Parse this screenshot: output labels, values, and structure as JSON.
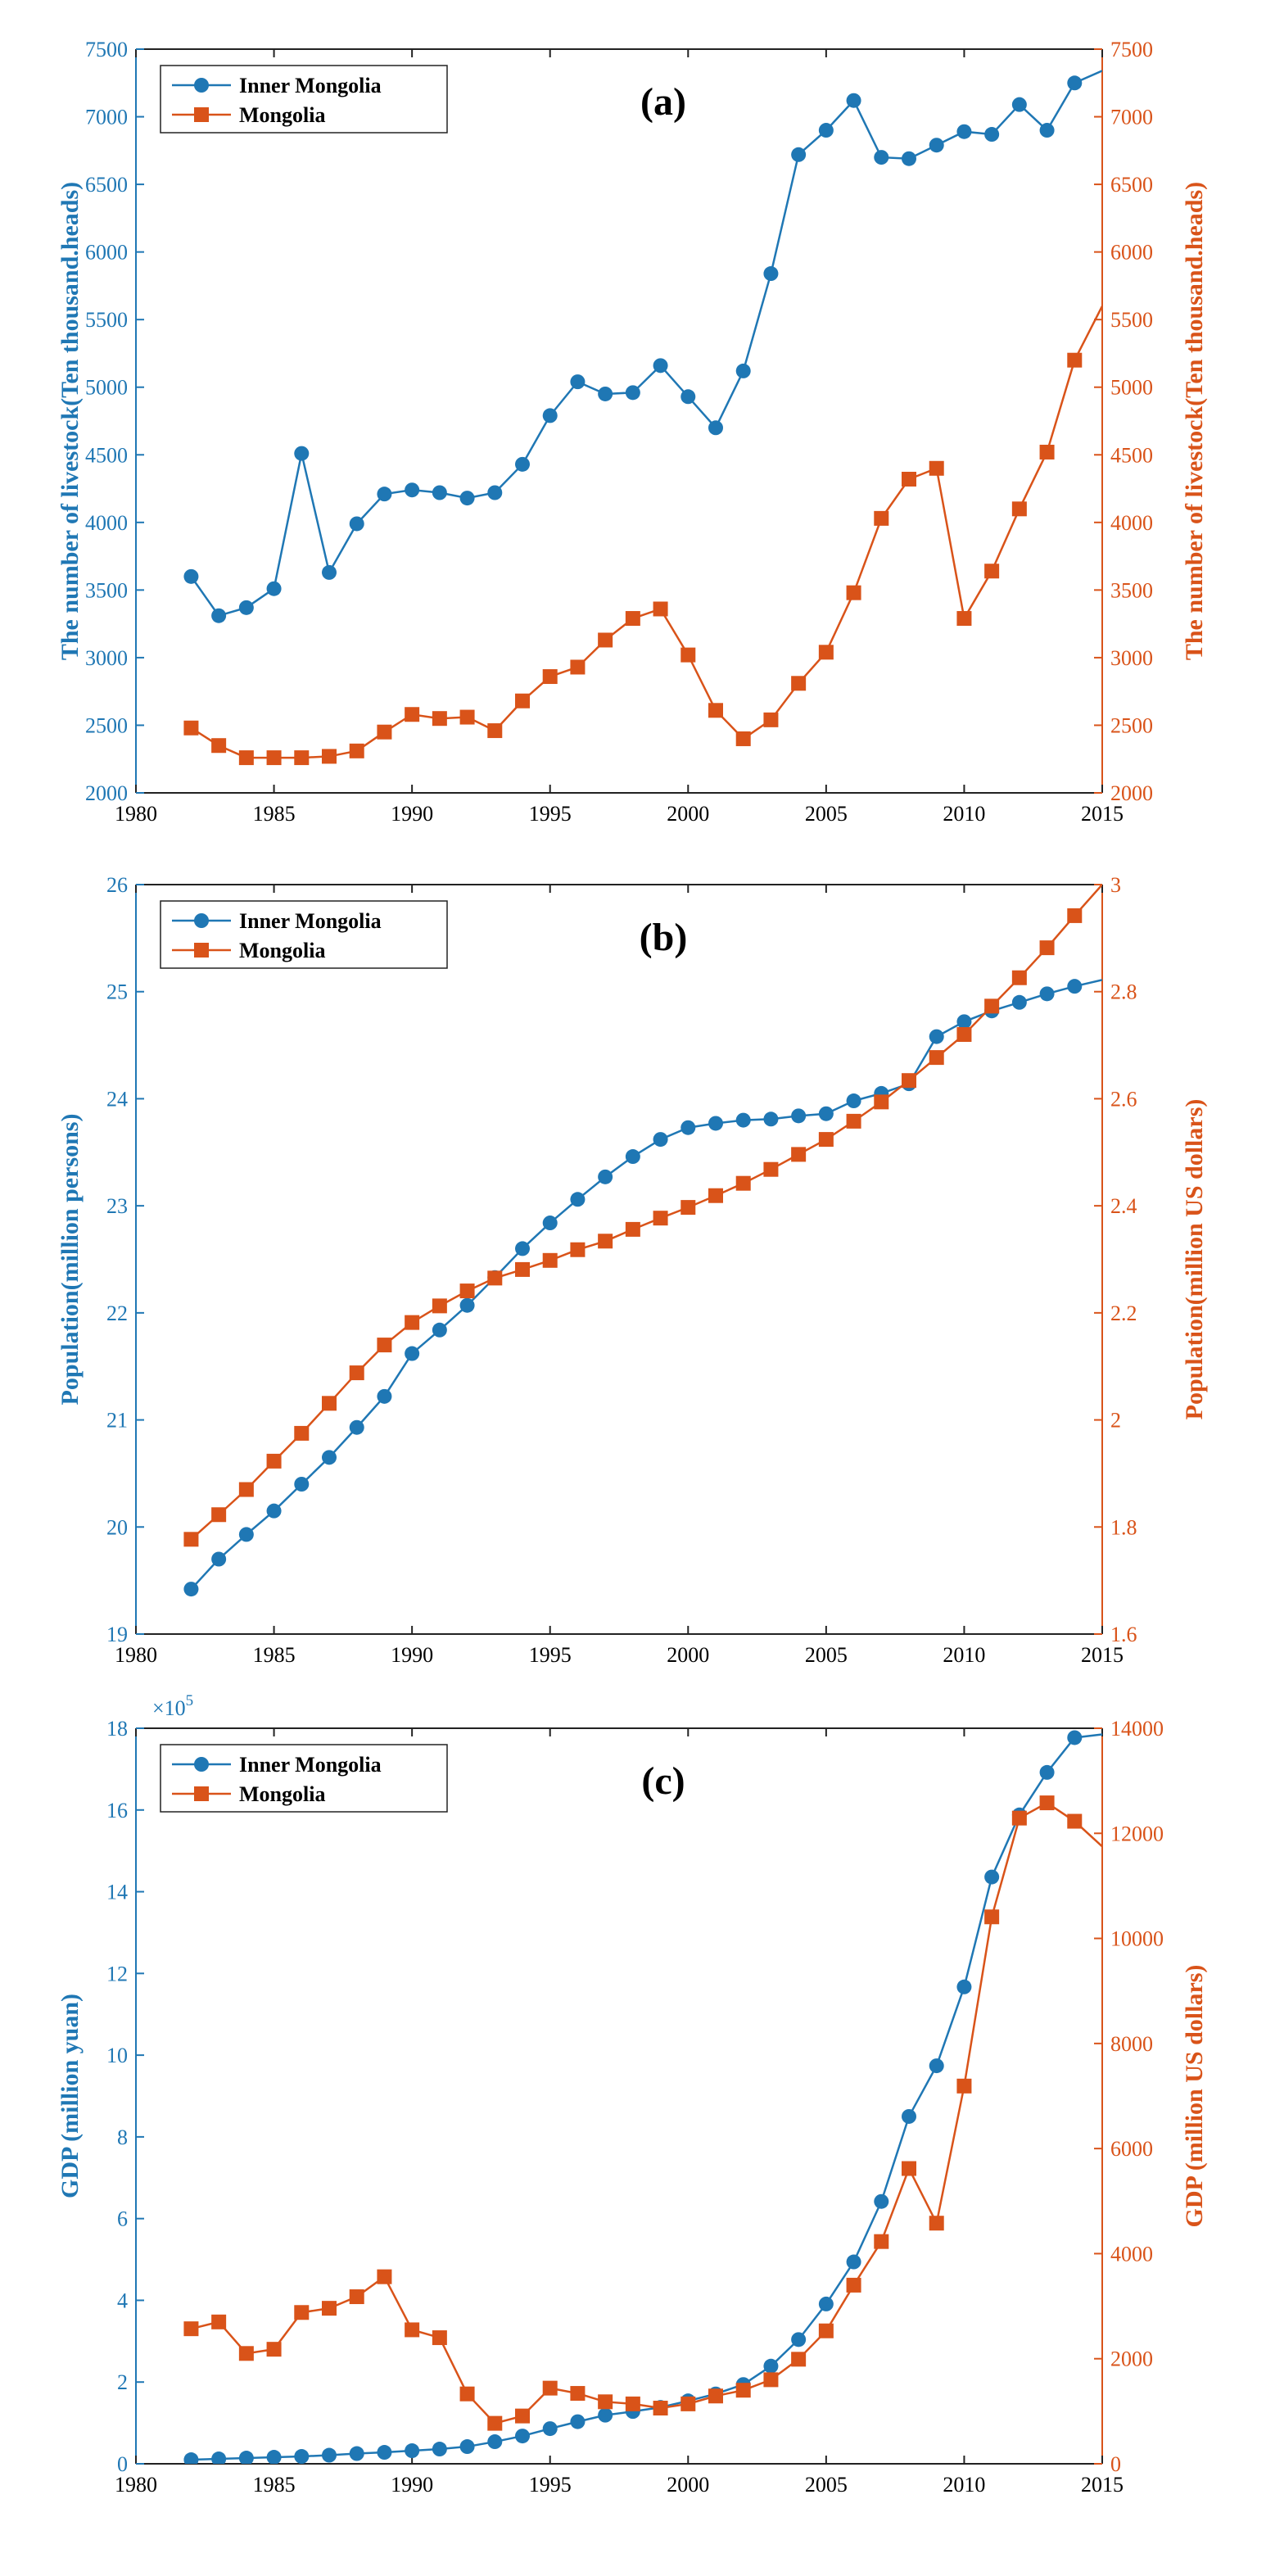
{
  "colors": {
    "inner": "#1f77b4",
    "mongolia": "#d95319"
  },
  "chart_data": [
    {
      "type": "line",
      "panel_label": "(a)",
      "x": [
        1982,
        1983,
        1984,
        1985,
        1986,
        1987,
        1988,
        1989,
        1990,
        1991,
        1992,
        1993,
        1994,
        1995,
        1996,
        1997,
        1998,
        1999,
        2000,
        2001,
        2002,
        2003,
        2004,
        2005,
        2006,
        2007,
        2008,
        2009,
        2010,
        2011,
        2012,
        2013,
        2014,
        2015
      ],
      "xlim": [
        1980,
        2015
      ],
      "xticks": [
        "1980",
        "1985",
        "1990",
        "1995",
        "2000",
        "2005",
        "2010",
        "2015"
      ],
      "ylabel_left": "The number of livestock(Ten thousand.heads)",
      "ylabel_right": "The number of livestock(Ten thousand.heads)",
      "ylim_left": [
        2000,
        7500
      ],
      "ylim_right": [
        2000,
        7500
      ],
      "yticks_left": [
        "2000",
        "2500",
        "3000",
        "3500",
        "4000",
        "4500",
        "5000",
        "5500",
        "6000",
        "6500",
        "7000",
        "7500"
      ],
      "yticks_right": [
        "2000",
        "2500",
        "3000",
        "3500",
        "4000",
        "4500",
        "5000",
        "5500",
        "6000",
        "6500",
        "7000",
        "7500"
      ],
      "legend": [
        "Inner Mongolia",
        "Mongolia"
      ],
      "series": [
        {
          "name": "Inner Mongolia",
          "axis": "left",
          "marker": "circle",
          "values": [
            3600,
            3310,
            3370,
            3510,
            4510,
            3630,
            3990,
            4210,
            4240,
            4220,
            4180,
            4220,
            4430,
            4790,
            5040,
            4950,
            4960,
            5160,
            4930,
            4700,
            5120,
            5840,
            6720,
            6900,
            7120,
            6700,
            6690,
            6790,
            6890,
            6870,
            7090,
            6900,
            7250,
            7340
          ]
        },
        {
          "name": "Mongolia",
          "axis": "right",
          "marker": "square",
          "values": [
            2480,
            2350,
            2260,
            2260,
            2260,
            2270,
            2310,
            2450,
            2580,
            2550,
            2560,
            2460,
            2680,
            2860,
            2930,
            3130,
            3290,
            3360,
            3020,
            2610,
            2400,
            2540,
            2810,
            3040,
            3480,
            4030,
            4320,
            4400,
            3290,
            3640,
            4100,
            4520,
            5200,
            5600
          ]
        }
      ]
    },
    {
      "type": "line",
      "panel_label": "(b)",
      "x": [
        1982,
        1983,
        1984,
        1985,
        1986,
        1987,
        1988,
        1989,
        1990,
        1991,
        1992,
        1993,
        1994,
        1995,
        1996,
        1997,
        1998,
        1999,
        2000,
        2001,
        2002,
        2003,
        2004,
        2005,
        2006,
        2007,
        2008,
        2009,
        2010,
        2011,
        2012,
        2013,
        2014,
        2015
      ],
      "xlim": [
        1980,
        2015
      ],
      "xticks": [
        "1980",
        "1985",
        "1990",
        "1995",
        "2000",
        "2005",
        "2010",
        "2015"
      ],
      "ylabel_left": "Population(million persons)",
      "ylabel_right": "Population(million US dollars)",
      "ylim_left": [
        19,
        26
      ],
      "ylim_right": [
        1.6,
        3.0
      ],
      "yticks_left": [
        "19",
        "20",
        "21",
        "22",
        "23",
        "24",
        "25",
        "26"
      ],
      "yticks_right": [
        "1.6",
        "1.8",
        "2",
        "2.2",
        "2.4",
        "2.6",
        "2.8",
        "3"
      ],
      "legend": [
        "Inner Mongolia",
        "Mongolia"
      ],
      "series": [
        {
          "name": "Inner Mongolia",
          "axis": "left",
          "marker": "circle",
          "values": [
            19.42,
            19.7,
            19.93,
            20.15,
            20.4,
            20.65,
            20.93,
            21.22,
            21.62,
            21.84,
            22.07,
            22.33,
            22.6,
            22.84,
            23.06,
            23.27,
            23.46,
            23.62,
            23.73,
            23.77,
            23.8,
            23.81,
            23.84,
            23.86,
            23.98,
            24.05,
            24.14,
            24.58,
            24.72,
            24.82,
            24.9,
            24.98,
            25.05,
            25.11
          ]
        },
        {
          "name": "Mongolia",
          "axis": "right",
          "marker": "square",
          "values": [
            1.777,
            1.823,
            1.87,
            1.923,
            1.975,
            2.031,
            2.088,
            2.14,
            2.182,
            2.213,
            2.241,
            2.265,
            2.281,
            2.298,
            2.318,
            2.334,
            2.356,
            2.377,
            2.397,
            2.419,
            2.442,
            2.468,
            2.496,
            2.524,
            2.558,
            2.594,
            2.634,
            2.677,
            2.72,
            2.773,
            2.826,
            2.882,
            2.942,
            3.0
          ]
        }
      ]
    },
    {
      "type": "line",
      "panel_label": "(c)",
      "x": [
        1982,
        1983,
        1984,
        1985,
        1986,
        1987,
        1988,
        1989,
        1990,
        1991,
        1992,
        1993,
        1994,
        1995,
        1996,
        1997,
        1998,
        1999,
        2000,
        2001,
        2002,
        2003,
        2004,
        2005,
        2006,
        2007,
        2008,
        2009,
        2010,
        2011,
        2012,
        2013,
        2014,
        2015
      ],
      "xlim": [
        1980,
        2015
      ],
      "xticks": [
        "1980",
        "1985",
        "1990",
        "1995",
        "2000",
        "2005",
        "2010",
        "2015"
      ],
      "ylabel_left": "GDP (million yuan)",
      "ylabel_right": "GDP (million US dollars)",
      "ylim_left": [
        0,
        18
      ],
      "ylim_right": [
        0,
        14000
      ],
      "yticks_left": [
        "0",
        "2",
        "4",
        "6",
        "8",
        "10",
        "12",
        "14",
        "16",
        "18"
      ],
      "yticks_right": [
        "0",
        "2000",
        "4000",
        "6000",
        "8000",
        "10000",
        "12000",
        "14000"
      ],
      "exponent_base": "×10",
      "exponent_power": "5",
      "legend": [
        "Inner Mongolia",
        "Mongolia"
      ],
      "series": [
        {
          "name": "Inner Mongolia",
          "axis": "left",
          "marker": "circle",
          "values": [
            0.1,
            0.12,
            0.14,
            0.16,
            0.18,
            0.21,
            0.25,
            0.28,
            0.32,
            0.36,
            0.42,
            0.54,
            0.68,
            0.86,
            1.03,
            1.19,
            1.28,
            1.38,
            1.54,
            1.71,
            1.94,
            2.39,
            3.04,
            3.91,
            4.94,
            6.42,
            8.5,
            9.74,
            11.67,
            14.36,
            15.88,
            16.92,
            17.77,
            17.85
          ]
        },
        {
          "name": "Mongolia",
          "axis": "right",
          "marker": "square",
          "values": [
            2570,
            2700,
            2100,
            2180,
            2880,
            2960,
            3180,
            3560,
            2550,
            2400,
            1330,
            770,
            910,
            1440,
            1340,
            1180,
            1140,
            1060,
            1140,
            1290,
            1400,
            1600,
            1990,
            2530,
            3400,
            4230,
            5620,
            4580,
            7190,
            10410,
            12290,
            12580,
            12230,
            11750
          ]
        }
      ]
    }
  ]
}
